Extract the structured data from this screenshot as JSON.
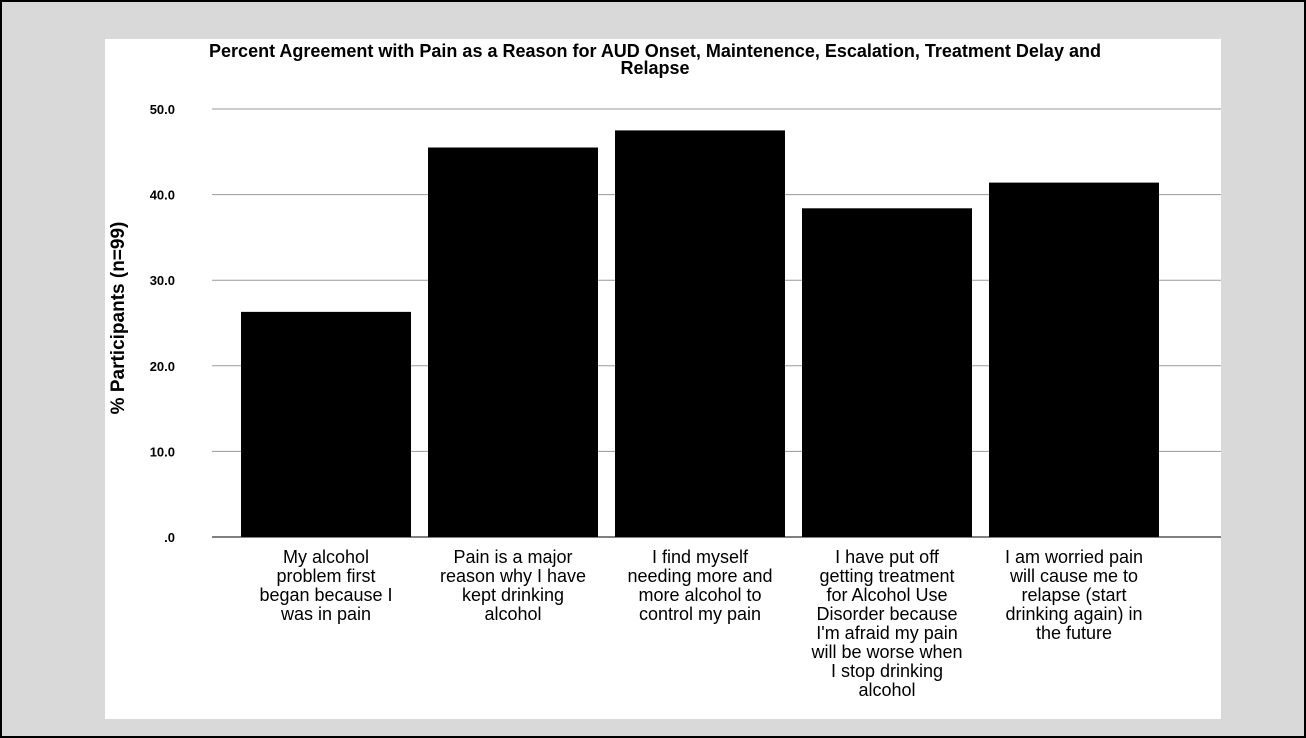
{
  "chart_data": {
    "type": "bar",
    "title_lines": [
      "Percent Agreement with Pain as a Reason for AUD Onset, Maintenence, Escalation, Treatment Delay and",
      "Relapse"
    ],
    "xlabel": "",
    "ylabel": "% Participants (n=99)",
    "ylim": [
      0,
      50
    ],
    "yticks": [
      ".0",
      "10.0",
      "20.0",
      "30.0",
      "40.0",
      "50.0"
    ],
    "grid": true,
    "bar_color": "#000000",
    "categories": [
      [
        "My alcohol",
        "problem first",
        "began because I",
        "was in pain"
      ],
      [
        "Pain is a major",
        "reason why I have",
        "kept drinking",
        "alcohol"
      ],
      [
        "I find myself",
        "needing more and",
        "more alcohol to",
        "control my pain"
      ],
      [
        "I have put off",
        "getting treatment",
        "for Alcohol Use",
        "Disorder because",
        "I'm afraid my pain",
        "will be worse when",
        "I stop drinking",
        "alcohol"
      ],
      [
        "I am worried pain",
        "will cause me to",
        "relapse (start",
        "drinking again) in",
        "the future"
      ]
    ],
    "values": [
      26.3,
      45.5,
      47.5,
      38.4,
      41.4
    ]
  }
}
